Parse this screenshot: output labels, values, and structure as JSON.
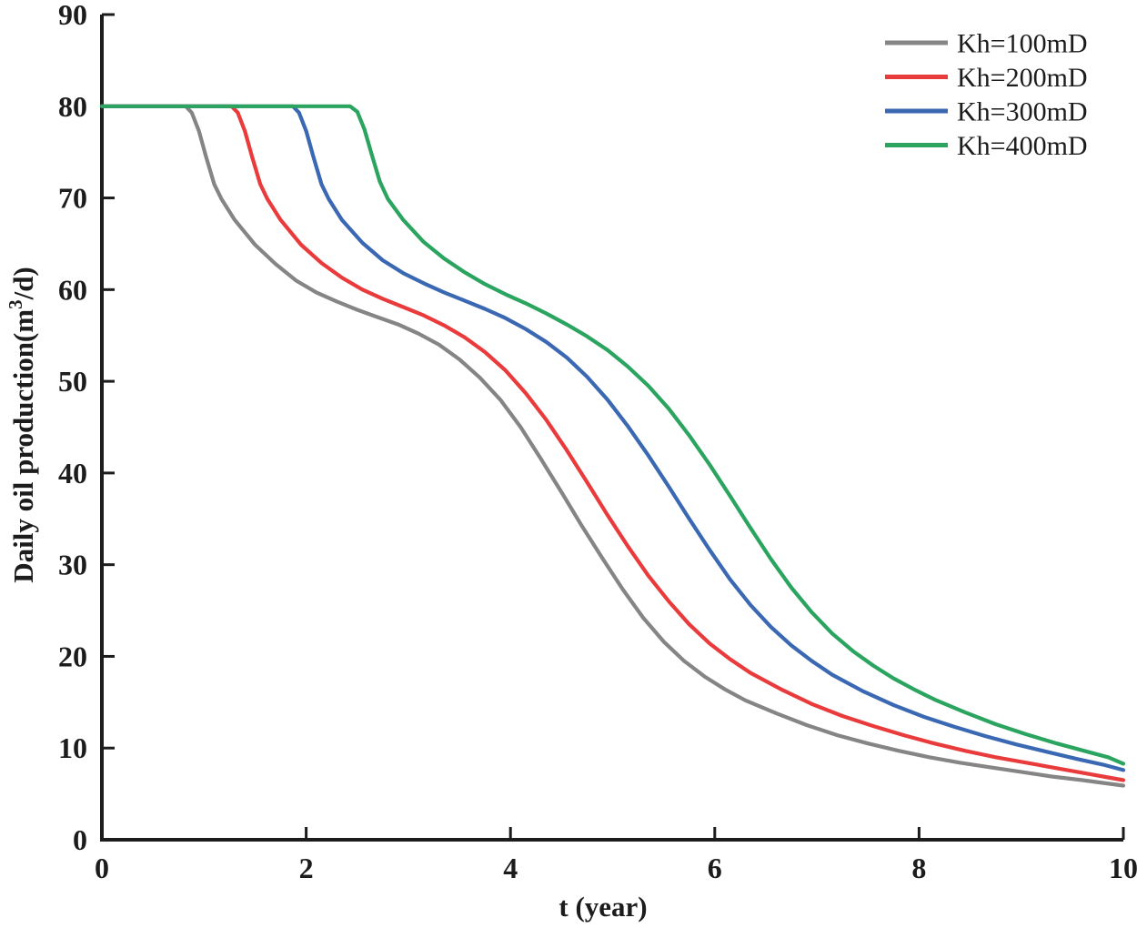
{
  "chart_data": {
    "type": "line",
    "title": "",
    "xlabel": "t (year)",
    "ylabel": {
      "text": "Daily oil production(m3/d)",
      "prefix": "Daily oil production(m",
      "superscript": "3",
      "suffix": "/d)"
    },
    "xlim": [
      0,
      10
    ],
    "ylim": [
      0,
      90
    ],
    "x_ticks": [
      0,
      2,
      4,
      6,
      8,
      10
    ],
    "y_ticks": [
      0,
      10,
      20,
      30,
      40,
      50,
      60,
      70,
      80,
      90
    ],
    "grid": false,
    "legend_position": "top-right",
    "axis_color": "#1c1c1c",
    "plateau_value": 80,
    "series": [
      {
        "name": "Kh=100mD",
        "color": "#858585",
        "points": [
          [
            0,
            80
          ],
          [
            0.4,
            80
          ],
          [
            0.82,
            80
          ],
          [
            0.88,
            79.3
          ],
          [
            0.95,
            77.3
          ],
          [
            1.02,
            74.5
          ],
          [
            1.1,
            71.5
          ],
          [
            1.17,
            69.9
          ],
          [
            1.3,
            67.6
          ],
          [
            1.5,
            64.9
          ],
          [
            1.7,
            62.8
          ],
          [
            1.9,
            61.0
          ],
          [
            2.1,
            59.7
          ],
          [
            2.3,
            58.7
          ],
          [
            2.5,
            57.8
          ],
          [
            2.7,
            57.0
          ],
          [
            2.9,
            56.2
          ],
          [
            3.1,
            55.2
          ],
          [
            3.3,
            54.0
          ],
          [
            3.5,
            52.4
          ],
          [
            3.7,
            50.4
          ],
          [
            3.9,
            48.0
          ],
          [
            4.1,
            45.0
          ],
          [
            4.3,
            41.5
          ],
          [
            4.5,
            37.9
          ],
          [
            4.7,
            34.2
          ],
          [
            4.9,
            30.7
          ],
          [
            5.1,
            27.3
          ],
          [
            5.3,
            24.2
          ],
          [
            5.5,
            21.6
          ],
          [
            5.7,
            19.5
          ],
          [
            5.9,
            17.8
          ],
          [
            6.1,
            16.4
          ],
          [
            6.3,
            15.2
          ],
          [
            6.6,
            13.8
          ],
          [
            6.9,
            12.5
          ],
          [
            7.2,
            11.4
          ],
          [
            7.5,
            10.5
          ],
          [
            7.8,
            9.7
          ],
          [
            8.1,
            9.0
          ],
          [
            8.4,
            8.4
          ],
          [
            8.7,
            7.9
          ],
          [
            9.0,
            7.4
          ],
          [
            9.3,
            6.9
          ],
          [
            9.6,
            6.5
          ],
          [
            9.8,
            6.2
          ],
          [
            10,
            5.9
          ]
        ]
      },
      {
        "name": "Kh=200mD",
        "color": "#ea3b3c",
        "points": [
          [
            0,
            80
          ],
          [
            0.7,
            80
          ],
          [
            1.27,
            80
          ],
          [
            1.33,
            79.3
          ],
          [
            1.4,
            77.3
          ],
          [
            1.47,
            74.5
          ],
          [
            1.55,
            71.5
          ],
          [
            1.62,
            69.9
          ],
          [
            1.75,
            67.6
          ],
          [
            1.95,
            64.9
          ],
          [
            2.15,
            62.9
          ],
          [
            2.35,
            61.3
          ],
          [
            2.55,
            60.0
          ],
          [
            2.75,
            59.0
          ],
          [
            2.95,
            58.1
          ],
          [
            3.15,
            57.2
          ],
          [
            3.35,
            56.1
          ],
          [
            3.55,
            54.8
          ],
          [
            3.75,
            53.2
          ],
          [
            3.95,
            51.2
          ],
          [
            4.15,
            48.7
          ],
          [
            4.35,
            45.8
          ],
          [
            4.55,
            42.5
          ],
          [
            4.75,
            39.0
          ],
          [
            4.95,
            35.4
          ],
          [
            5.15,
            32.0
          ],
          [
            5.35,
            28.8
          ],
          [
            5.55,
            26.0
          ],
          [
            5.75,
            23.5
          ],
          [
            5.95,
            21.4
          ],
          [
            6.15,
            19.7
          ],
          [
            6.35,
            18.2
          ],
          [
            6.65,
            16.4
          ],
          [
            6.95,
            14.8
          ],
          [
            7.25,
            13.5
          ],
          [
            7.55,
            12.4
          ],
          [
            7.85,
            11.4
          ],
          [
            8.15,
            10.5
          ],
          [
            8.45,
            9.7
          ],
          [
            8.75,
            9.0
          ],
          [
            9.05,
            8.4
          ],
          [
            9.35,
            7.8
          ],
          [
            9.65,
            7.2
          ],
          [
            9.85,
            6.8
          ],
          [
            10,
            6.5
          ]
        ]
      },
      {
        "name": "Kh=300mD",
        "color": "#3a68b2",
        "points": [
          [
            0,
            80
          ],
          [
            0.9,
            80
          ],
          [
            1.87,
            80
          ],
          [
            1.93,
            79.3
          ],
          [
            2.0,
            77.3
          ],
          [
            2.07,
            74.5
          ],
          [
            2.15,
            71.5
          ],
          [
            2.22,
            69.9
          ],
          [
            2.35,
            67.6
          ],
          [
            2.55,
            65.1
          ],
          [
            2.75,
            63.2
          ],
          [
            2.95,
            61.8
          ],
          [
            3.15,
            60.7
          ],
          [
            3.35,
            59.7
          ],
          [
            3.55,
            58.8
          ],
          [
            3.75,
            57.9
          ],
          [
            3.95,
            56.9
          ],
          [
            4.15,
            55.7
          ],
          [
            4.35,
            54.3
          ],
          [
            4.55,
            52.6
          ],
          [
            4.75,
            50.5
          ],
          [
            4.95,
            48.0
          ],
          [
            5.15,
            45.1
          ],
          [
            5.35,
            41.9
          ],
          [
            5.55,
            38.5
          ],
          [
            5.75,
            35.0
          ],
          [
            5.95,
            31.6
          ],
          [
            6.15,
            28.4
          ],
          [
            6.35,
            25.6
          ],
          [
            6.55,
            23.2
          ],
          [
            6.75,
            21.2
          ],
          [
            6.95,
            19.5
          ],
          [
            7.15,
            18.0
          ],
          [
            7.45,
            16.2
          ],
          [
            7.75,
            14.7
          ],
          [
            8.05,
            13.4
          ],
          [
            8.35,
            12.3
          ],
          [
            8.65,
            11.3
          ],
          [
            8.95,
            10.4
          ],
          [
            9.25,
            9.6
          ],
          [
            9.55,
            8.8
          ],
          [
            9.8,
            8.2
          ],
          [
            10,
            7.6
          ]
        ]
      },
      {
        "name": "Kh=400mD",
        "color": "#2aa45f",
        "points": [
          [
            0,
            80
          ],
          [
            1.2,
            80
          ],
          [
            2.43,
            80
          ],
          [
            2.5,
            79.4
          ],
          [
            2.57,
            77.5
          ],
          [
            2.64,
            74.8
          ],
          [
            2.72,
            71.8
          ],
          [
            2.8,
            69.9
          ],
          [
            2.95,
            67.6
          ],
          [
            3.15,
            65.2
          ],
          [
            3.35,
            63.4
          ],
          [
            3.55,
            61.9
          ],
          [
            3.75,
            60.6
          ],
          [
            3.95,
            59.5
          ],
          [
            4.15,
            58.5
          ],
          [
            4.35,
            57.4
          ],
          [
            4.55,
            56.2
          ],
          [
            4.75,
            54.9
          ],
          [
            4.95,
            53.4
          ],
          [
            5.15,
            51.6
          ],
          [
            5.35,
            49.5
          ],
          [
            5.55,
            47.0
          ],
          [
            5.75,
            44.1
          ],
          [
            5.95,
            40.9
          ],
          [
            6.15,
            37.5
          ],
          [
            6.35,
            34.0
          ],
          [
            6.55,
            30.6
          ],
          [
            6.75,
            27.5
          ],
          [
            6.95,
            24.8
          ],
          [
            7.15,
            22.5
          ],
          [
            7.35,
            20.6
          ],
          [
            7.55,
            19.0
          ],
          [
            7.75,
            17.6
          ],
          [
            7.95,
            16.4
          ],
          [
            8.15,
            15.3
          ],
          [
            8.45,
            13.9
          ],
          [
            8.75,
            12.6
          ],
          [
            9.05,
            11.5
          ],
          [
            9.35,
            10.5
          ],
          [
            9.65,
            9.6
          ],
          [
            9.85,
            9.0
          ],
          [
            10,
            8.3
          ]
        ]
      }
    ]
  }
}
